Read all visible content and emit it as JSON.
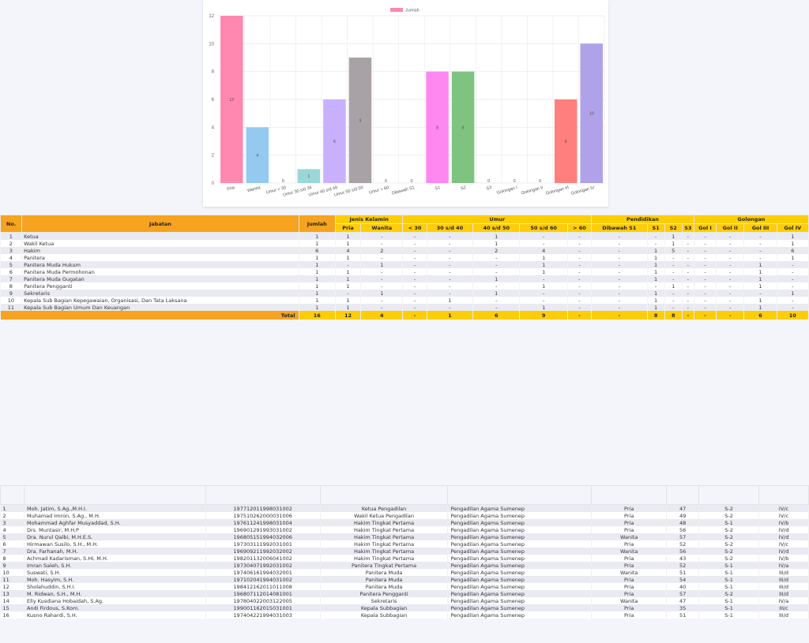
{
  "chart_data": {
    "type": "bar",
    "categories": [
      "Pria",
      "Wanita",
      "Umur < 30",
      "Umur 30 s/d 39",
      "Umur 40 s/d 49",
      "Umur 50 s/d 59",
      "Umur > 60",
      "Dibawah S1",
      "S1",
      "S2",
      "S3",
      "Golongan I",
      "Golongan II",
      "Golongan III",
      "Golongan IV"
    ],
    "series": [
      {
        "name": "Jumlah",
        "values": [
          12,
          4,
          0,
          1,
          6,
          9,
          0,
          0,
          8,
          8,
          0,
          0,
          0,
          6,
          10
        ]
      }
    ],
    "colors": [
      "#ff88b0",
      "#94caf0",
      "#94caf0",
      "#9ad8d8",
      "#c9b0ff",
      "#a8a2a6",
      "#a8a2a6",
      "#ff88f0",
      "#ff88f0",
      "#7fc380",
      "#7fc380",
      "#7fc380",
      "#7fc380",
      "#ff7f7f",
      "#b0a2e8"
    ],
    "legend_color": "#ff88b0",
    "ylim": [
      0,
      12
    ],
    "yticks": [
      0,
      2,
      4,
      6,
      8,
      10,
      12
    ],
    "grid": true,
    "legend": "top-center"
  },
  "summary": {
    "headers": {
      "no": "No.",
      "jabatan": "Jabatan",
      "jumlah": "Jumlah",
      "jenis_kelamin": "Jenis Kelamin",
      "umur": "Umur",
      "pendidikan": "Pendidikan",
      "golongan": "Golongan",
      "sub": [
        "Pria",
        "Wanita",
        "< 30",
        "30 s/d 40",
        "40 s/d 50",
        "50 s/d 60",
        "> 60",
        "Dibawah S1",
        "S1",
        "S2",
        "S3",
        "Gol I",
        "Gol II",
        "Gol III",
        "Gol IV"
      ]
    },
    "rows": [
      [
        "1",
        "Ketua",
        "1",
        "1",
        "-",
        "-",
        "-",
        "1",
        "-",
        "-",
        "-",
        "-",
        "1",
        "-",
        "-",
        "-",
        "-",
        "1"
      ],
      [
        "2",
        "Wakil Ketua",
        "1",
        "1",
        "-",
        "-",
        "-",
        "1",
        "-",
        "-",
        "-",
        "-",
        "1",
        "-",
        "-",
        "-",
        "-",
        "1"
      ],
      [
        "3",
        "Hakim",
        "6",
        "4",
        "2",
        "-",
        "-",
        "2",
        "4",
        "-",
        "-",
        "1",
        "5",
        "-",
        "-",
        "-",
        "-",
        "6"
      ],
      [
        "4",
        "Panitera",
        "1",
        "1",
        "-",
        "-",
        "-",
        "-",
        "1",
        "-",
        "-",
        "1",
        "-",
        "-",
        "-",
        "-",
        "-",
        "1"
      ],
      [
        "5",
        "Panitera Muda Hukum",
        "1",
        "-",
        "1",
        "-",
        "-",
        "-",
        "1",
        "-",
        "-",
        "1",
        "-",
        "-",
        "-",
        "-",
        "1",
        "-"
      ],
      [
        "6",
        "Panitera Muda Permohonan",
        "1",
        "1",
        "-",
        "-",
        "-",
        "-",
        "1",
        "-",
        "-",
        "1",
        "-",
        "-",
        "-",
        "-",
        "1",
        "-"
      ],
      [
        "7",
        "Panitera Muda Gugatan",
        "1",
        "1",
        "-",
        "-",
        "-",
        "1",
        "-",
        "-",
        "-",
        "1",
        "-",
        "-",
        "-",
        "-",
        "1",
        "-"
      ],
      [
        "8",
        "Panitera Pengganti",
        "1",
        "1",
        "-",
        "-",
        "-",
        "-",
        "1",
        "-",
        "-",
        "-",
        "1",
        "-",
        "-",
        "-",
        "1",
        "-"
      ],
      [
        "9",
        "Sekretaris",
        "1",
        "-",
        "1",
        "-",
        "-",
        "1",
        "-",
        "-",
        "-",
        "1",
        "-",
        "-",
        "-",
        "-",
        "-",
        "1"
      ],
      [
        "10",
        "Kepala Sub Bagian Kepegawaian, Organisasi, Dan Tata Laksana",
        "1",
        "1",
        "-",
        "-",
        "1",
        "-",
        "-",
        "-",
        "-",
        "1",
        "-",
        "-",
        "-",
        "-",
        "1",
        "-"
      ],
      [
        "11",
        "Kepala Sub Bagian Umum Dan Keuangan",
        "1",
        "1",
        "-",
        "-",
        "-",
        "-",
        "1",
        "-",
        "-",
        "1",
        "-",
        "-",
        "-",
        "-",
        "1",
        "-"
      ]
    ],
    "total": {
      "label": "Total",
      "values": [
        "16",
        "12",
        "4",
        "-",
        "1",
        "6",
        "9",
        "-",
        "-",
        "8",
        "8",
        "-",
        "-",
        "-",
        "6",
        "10"
      ]
    }
  },
  "staff": {
    "rows": [
      [
        "1",
        "Moh. Jatim, S.Ag.,M.H.I.",
        "197712011998031002",
        "Ketua Pengadilan",
        "Pengadilan Agama Sumenep",
        "Pria",
        "47",
        "S-2",
        "IV/c"
      ],
      [
        "2",
        "Muhamad Imron, S.Ag., M.H.",
        "197510262000031006",
        "Wakil Ketua Pengadilan",
        "Pengadilan Agama Sumenep",
        "Pria",
        "49",
        "S-2",
        "IV/c"
      ],
      [
        "3",
        "Mohammad Aghfar Musyaddad, S.H.",
        "197611241998031004",
        "Hakim Tingkat Pertama",
        "Pengadilan Agama Sumenep",
        "Pria",
        "48",
        "S-1",
        "IV/b"
      ],
      [
        "4",
        "Drs. Muntasir, M.H.P",
        "196901291993031002",
        "Hakim Tingkat Pertama",
        "Pengadilan Agama Sumenep",
        "Pria",
        "56",
        "S-2",
        "IV/d"
      ],
      [
        "5",
        "Dra. Nurul Qalbi, M.H.E.S.",
        "196805151994032006",
        "Hakim Tingkat Pertama",
        "Pengadilan Agama Sumenep",
        "Wanita",
        "57",
        "S-2",
        "IV/d"
      ],
      [
        "6",
        "Hirmawan Susilo, S.H., M.H.",
        "197303111992031001",
        "Hakim Tingkat Pertama",
        "Pengadilan Agama Sumenep",
        "Pria",
        "52",
        "S-2",
        "IV/c"
      ],
      [
        "7",
        "Dra. Farhanah, M.H.",
        "196909211992032002",
        "Hakim Tingkat Pertama",
        "Pengadilan Agama Sumenep",
        "Wanita",
        "56",
        "S-2",
        "IV/d"
      ],
      [
        "8",
        "Achmad Kadarisman, S.HI, M.H.",
        "198201132006041002",
        "Hakim Tingkat Pertama",
        "Pengadilan Agama Sumenep",
        "Pria",
        "43",
        "S-2",
        "IV/b"
      ],
      [
        "9",
        "Imran Saleh, S.H.",
        "197304071992031002",
        "Panitera Tingkat Pertama",
        "Pengadilan Agama Sumenep",
        "Pria",
        "52",
        "S-1",
        "IV/a"
      ],
      [
        "10",
        "Suswati, S.H.",
        "197406161994032001",
        "Panitera Muda",
        "Pengadilan Agama Sumenep",
        "Wanita",
        "51",
        "S-1",
        "III/d"
      ],
      [
        "11",
        "Moh. Hasyim, S.H.",
        "197102041994031002",
        "Panitera Muda",
        "Pengadilan Agama Sumenep",
        "Pria",
        "54",
        "S-1",
        "III/d"
      ],
      [
        "12",
        "Sholahuddin, S.H.I.",
        "198412162011011008",
        "Panitera Muda",
        "Pengadilan Agama Sumenep",
        "Pria",
        "40",
        "S-1",
        "III/d"
      ],
      [
        "13",
        "M. Ridwan, S.H., M.H.",
        "196807112014081001",
        "Panitera Pengganti",
        "Pengadilan Agama Sumenep",
        "Pria",
        "57",
        "S-2",
        "III/d"
      ],
      [
        "14",
        "Elly Kusdiana Hobaidah, S.Ag.",
        "197804022003122005",
        "Sekretaris",
        "Pengadilan Agama Sumenep",
        "Wanita",
        "47",
        "S-1",
        "IV/a"
      ],
      [
        "15",
        "Andi Firdous, S.Kom.",
        "199001162015031001",
        "Kepala Subbagian",
        "Pengadilan Agama Sumenep",
        "Pria",
        "35",
        "S-1",
        "III/c"
      ],
      [
        "16",
        "Kusno Rahardi, S.H.",
        "197404221994031003",
        "Kepala Subbagian",
        "Pengadilan Agama Sumenep",
        "Pria",
        "51",
        "S-1",
        "III/d"
      ]
    ]
  }
}
